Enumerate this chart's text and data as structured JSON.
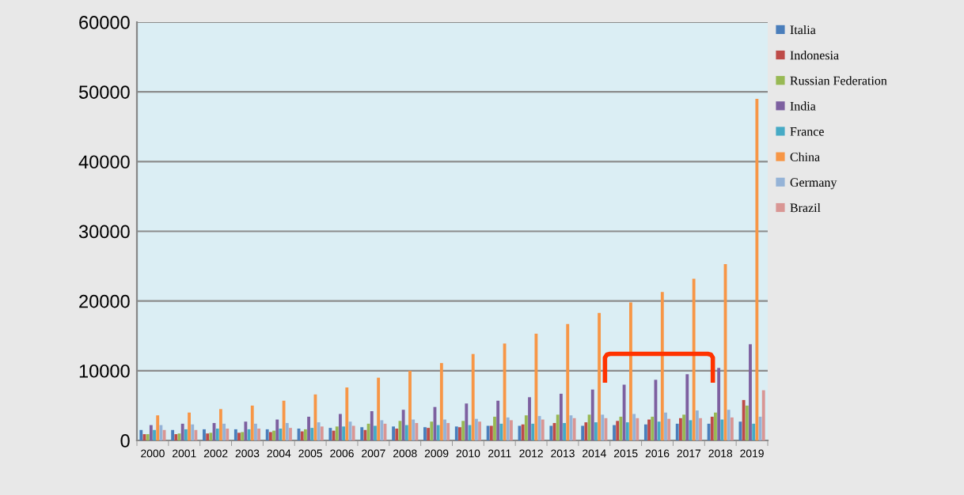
{
  "chart_data": {
    "type": "bar",
    "categories": [
      "2000",
      "2001",
      "2002",
      "2003",
      "2004",
      "2005",
      "2006",
      "2007",
      "2008",
      "2009",
      "2010",
      "2011",
      "2012",
      "2013",
      "2014",
      "2015",
      "2016",
      "2017",
      "2018",
      "2019"
    ],
    "series": [
      {
        "name": "Italia",
        "color": "#4a7ebb",
        "values": [
          1500,
          1500,
          1600,
          1600,
          1600,
          1700,
          1800,
          1900,
          2000,
          1900,
          2000,
          2100,
          2100,
          2100,
          2100,
          2200,
          2300,
          2400,
          2400,
          2700
        ]
      },
      {
        "name": "Indonesia",
        "color": "#be4b48",
        "values": [
          900,
          900,
          1000,
          1100,
          1200,
          1300,
          1400,
          1500,
          1700,
          1800,
          1900,
          2100,
          2300,
          2500,
          2600,
          2800,
          3000,
          3200,
          3400,
          5800
        ]
      },
      {
        "name": "Russian Federation",
        "color": "#98b954",
        "values": [
          900,
          1000,
          1100,
          1200,
          1400,
          1600,
          2000,
          2400,
          2800,
          2700,
          2800,
          3400,
          3600,
          3700,
          3700,
          3400,
          3400,
          3700,
          4000,
          5000
        ]
      },
      {
        "name": "India",
        "color": "#7d60a0",
        "values": [
          2200,
          2400,
          2500,
          2700,
          3000,
          3400,
          3800,
          4200,
          4400,
          4800,
          5300,
          5700,
          6200,
          6700,
          7300,
          8000,
          8700,
          9500,
          10400,
          13800
        ]
      },
      {
        "name": "France",
        "color": "#46aac5",
        "values": [
          1500,
          1600,
          1700,
          1600,
          1700,
          1800,
          2000,
          2100,
          2200,
          2200,
          2200,
          2400,
          2400,
          2500,
          2600,
          2600,
          2700,
          2900,
          3000,
          2400
        ]
      },
      {
        "name": "China",
        "color": "#f79646",
        "values": [
          3600,
          4000,
          4500,
          5000,
          5700,
          6600,
          7600,
          9000,
          10000,
          11100,
          12400,
          13900,
          15300,
          16700,
          18300,
          19800,
          21300,
          23200,
          25300,
          49000
        ]
      },
      {
        "name": "Germany",
        "color": "#95b3d7",
        "values": [
          2200,
          2300,
          2400,
          2400,
          2500,
          2600,
          2700,
          2900,
          3000,
          3000,
          3100,
          3300,
          3500,
          3600,
          3700,
          3800,
          4000,
          4300,
          4400,
          3400
        ]
      },
      {
        "name": "Brazil",
        "color": "#d99694",
        "values": [
          1500,
          1500,
          1700,
          1700,
          1800,
          2000,
          2100,
          2400,
          2500,
          2500,
          2700,
          2900,
          3000,
          3200,
          3200,
          3200,
          3100,
          3200,
          3300,
          7200
        ]
      }
    ],
    "ylim": [
      0,
      60000
    ],
    "yticks": [
      0,
      10000,
      20000,
      30000,
      40000,
      50000,
      60000
    ],
    "grid": "y",
    "legend": "top right"
  }
}
